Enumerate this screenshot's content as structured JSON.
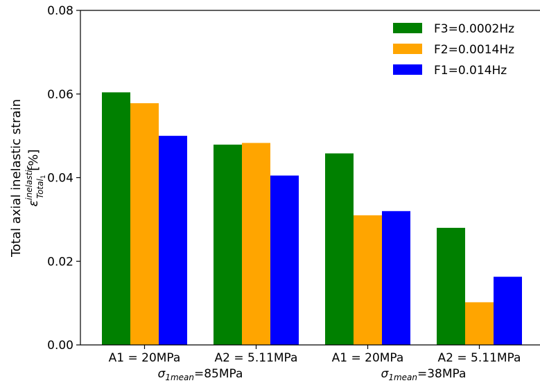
{
  "chart_data": {
    "type": "bar",
    "categories": [
      "A1 = 20MPa",
      "A2 = 5.11MPa",
      "A1 = 20MPa",
      "A2 = 5.11MPa"
    ],
    "groups": [
      {
        "label_sigma": "σ",
        "label_sub": "1mean",
        "label_rest": "=85MPa",
        "categories": [
          0,
          1
        ]
      },
      {
        "label_sigma": "σ",
        "label_sub": "1mean",
        "label_rest": "=38MPa",
        "categories": [
          2,
          3
        ]
      }
    ],
    "series": [
      {
        "name": "F3=0.0002Hz",
        "color": "#008000",
        "values": [
          0.0604,
          0.0479,
          0.0458,
          0.028
        ]
      },
      {
        "name": "F2=0.0014Hz",
        "color": "#FFA500",
        "values": [
          0.0578,
          0.0483,
          0.031,
          0.0102
        ]
      },
      {
        "name": "F1=0.014Hz",
        "color": "#0000FF",
        "values": [
          0.05,
          0.0405,
          0.032,
          0.0163
        ]
      }
    ],
    "ylim": [
      0,
      0.08
    ],
    "yticks": [
      "0.00",
      "0.02",
      "0.04",
      "0.06",
      "0.08"
    ],
    "ylabel_line1": "Total axial inelastic strain",
    "ylabel_eps": "ε",
    "ylabel_sup": "inelastic",
    "ylabel_sub": "Total",
    "ylabel_subsub": "1",
    "ylabel_unit": " [%]",
    "legend_position": "top-right",
    "grid": false
  }
}
